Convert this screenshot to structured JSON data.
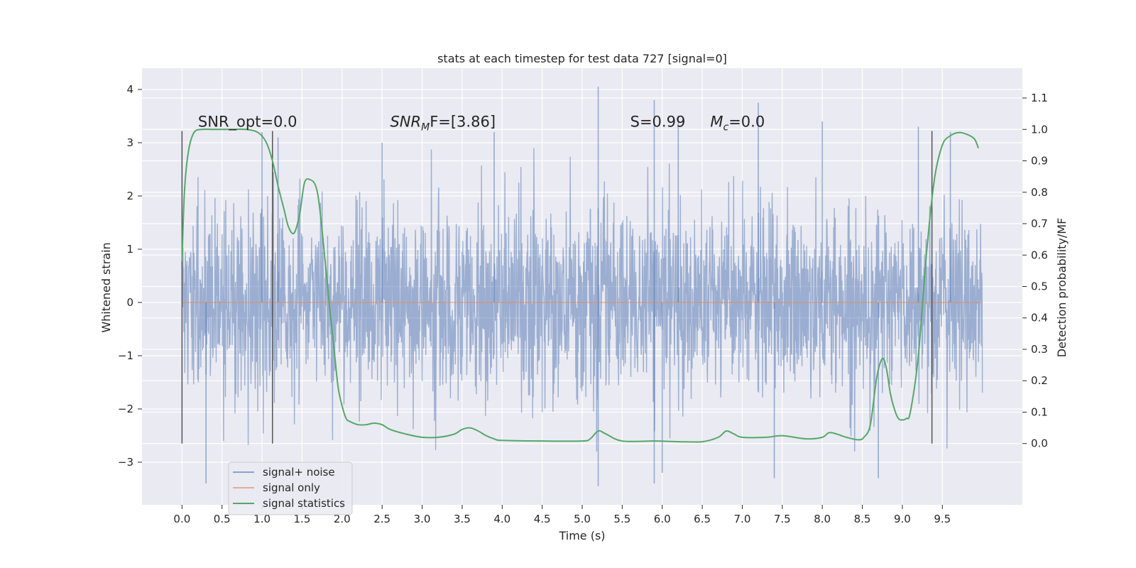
{
  "chart_data": {
    "type": "line",
    "title": "stats at each timestep for test data 727 [signal=0]",
    "xlabel": "Time (s)",
    "ylabel": "Whitened strain",
    "y2label": "Detection probability/MF",
    "xlim": [
      -0.5,
      10.5
    ],
    "ylim": [
      -3.8,
      4.4
    ],
    "y2lim": [
      -0.195,
      1.195
    ],
    "x_ticks": [
      0.0,
      0.5,
      1.0,
      1.5,
      2.0,
      2.5,
      3.0,
      3.5,
      4.0,
      4.5,
      5.0,
      5.5,
      6.0,
      6.5,
      7.0,
      7.5,
      8.0,
      8.5,
      9.0,
      9.5
    ],
    "x_tick_labels": [
      "0.0",
      "0.5",
      "1.0",
      "1.5",
      "2.0",
      "2.5",
      "3.0",
      "3.5",
      "4.0",
      "4.5",
      "5.0",
      "5.5",
      "6.0",
      "6.5",
      "7.0",
      "7.5",
      "8.0",
      "8.5",
      "9.0",
      "9.5"
    ],
    "y_ticks": [
      -3,
      -2,
      -1,
      0,
      1,
      2,
      3,
      4
    ],
    "y_tick_labels": [
      "−3",
      "−2",
      "−1",
      "0",
      "1",
      "2",
      "3",
      "4"
    ],
    "y2_ticks": [
      0.0,
      0.1,
      0.2,
      0.3,
      0.4,
      0.5,
      0.6,
      0.7,
      0.8,
      0.9,
      1.0,
      1.1
    ],
    "y2_tick_labels": [
      "0.0",
      "0.1",
      "0.2",
      "0.3",
      "0.4",
      "0.5",
      "0.6",
      "0.7",
      "0.8",
      "0.9",
      "1.0",
      "1.1"
    ],
    "grid": true,
    "legend_placement": "lower-left",
    "annotations": [
      {
        "text": "SNR_opt=0.0",
        "x": 0.2
      },
      {
        "text_main": "SNR",
        "text_sub": "M",
        "text_rest": "F=[3.86]",
        "x": 2.6
      },
      {
        "text": "S=0.99",
        "x": 5.6
      },
      {
        "text_main": "M",
        "text_sub": "c",
        "text_rest": "=0.0",
        "x": 6.6
      }
    ],
    "annotation_y": 3.3,
    "vlines": [
      0.0,
      1.13,
      9.37
    ],
    "vline_range": [
      -2.65,
      3.22
    ],
    "series": [
      {
        "name": "signal+ noise",
        "color": "#4c72b0",
        "axis": "left",
        "kind": "noise",
        "x_range": [
          0.0,
          10.0
        ],
        "spikes_up": [
          [
            1.0,
            3.2
          ],
          [
            1.2,
            3.1
          ],
          [
            2.5,
            3.0
          ],
          [
            3.9,
            3.2
          ],
          [
            5.2,
            4.05
          ],
          [
            5.9,
            3.8
          ],
          [
            6.2,
            3.5
          ],
          [
            7.2,
            3.75
          ],
          [
            8.0,
            3.4
          ],
          [
            9.2,
            3.3
          ],
          [
            9.6,
            3.2
          ]
        ],
        "spikes_down": [
          [
            0.3,
            -3.4
          ],
          [
            5.2,
            -3.45
          ],
          [
            5.9,
            -3.4
          ],
          [
            7.4,
            -3.3
          ],
          [
            8.7,
            -3.3
          ],
          [
            6.0,
            -3.2
          ]
        ]
      },
      {
        "name": "signal only",
        "color": "#dd8452",
        "axis": "left",
        "x": [
          0.0,
          10.0
        ],
        "y": [
          0.0,
          0.0
        ]
      },
      {
        "name": "signal statistics",
        "color": "#55a868",
        "axis": "right",
        "x": [
          0.0,
          0.03,
          0.08,
          0.15,
          0.25,
          0.4,
          0.6,
          0.8,
          0.95,
          1.05,
          1.13,
          1.2,
          1.27,
          1.33,
          1.4,
          1.47,
          1.53,
          1.6,
          1.67,
          1.72,
          1.8,
          1.85,
          1.9,
          1.95,
          2.0,
          2.05,
          2.1,
          2.2,
          2.3,
          2.4,
          2.5,
          2.6,
          2.8,
          3.0,
          3.2,
          3.4,
          3.5,
          3.6,
          3.7,
          3.8,
          3.9,
          4.0,
          4.5,
          5.0,
          5.1,
          5.2,
          5.3,
          5.5,
          5.9,
          6.2,
          6.5,
          6.7,
          6.8,
          6.9,
          7.0,
          7.3,
          7.5,
          7.8,
          8.0,
          8.1,
          8.3,
          8.45,
          8.52,
          8.6,
          8.68,
          8.75,
          8.8,
          8.85,
          8.9,
          8.95,
          9.0,
          9.05,
          9.1,
          9.2,
          9.3,
          9.4,
          9.5,
          9.6,
          9.7,
          9.8,
          9.9,
          9.95
        ],
        "y": [
          0.58,
          0.8,
          0.93,
          0.99,
          1.0,
          1.0,
          1.0,
          1.0,
          0.99,
          0.96,
          0.9,
          0.82,
          0.75,
          0.69,
          0.67,
          0.73,
          0.83,
          0.84,
          0.82,
          0.75,
          0.55,
          0.42,
          0.3,
          0.18,
          0.12,
          0.08,
          0.07,
          0.06,
          0.06,
          0.065,
          0.06,
          0.045,
          0.03,
          0.02,
          0.02,
          0.03,
          0.045,
          0.05,
          0.04,
          0.025,
          0.015,
          0.01,
          0.008,
          0.008,
          0.015,
          0.04,
          0.03,
          0.008,
          0.008,
          0.006,
          0.006,
          0.02,
          0.04,
          0.03,
          0.02,
          0.02,
          0.025,
          0.015,
          0.02,
          0.035,
          0.02,
          0.012,
          0.02,
          0.06,
          0.21,
          0.27,
          0.24,
          0.16,
          0.11,
          0.08,
          0.075,
          0.08,
          0.1,
          0.28,
          0.6,
          0.84,
          0.95,
          0.98,
          0.99,
          0.985,
          0.97,
          0.94
        ]
      }
    ]
  }
}
